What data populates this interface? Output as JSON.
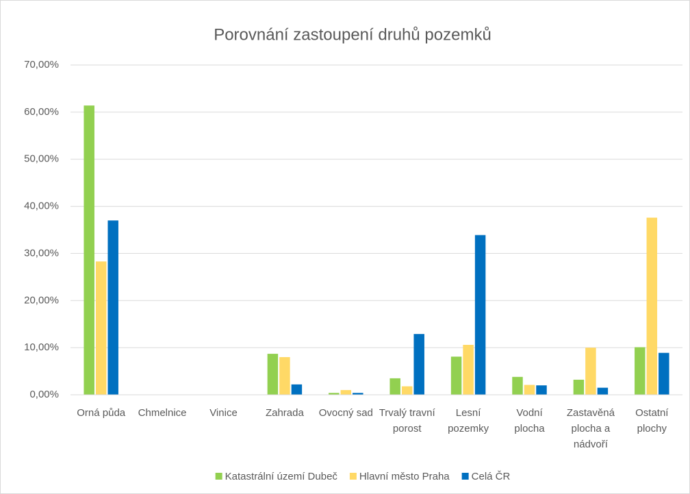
{
  "chart_data": {
    "type": "bar",
    "title": "Porovnání zastoupení druhů pozemků",
    "categories": [
      "Orná půda",
      "Chmelnice",
      "Vinice",
      "Zahrada",
      "Ovocný sad",
      "Trvalý travní porost",
      "Lesní pozemky",
      "Vodní plocha",
      "Zastavěná plocha a nádvoří",
      "Ostatní plochy"
    ],
    "series": [
      {
        "name": "Katastrální území Dubeč",
        "color": "#92d050",
        "values": [
          61.4,
          0,
          0,
          8.7,
          0.4,
          3.5,
          8.1,
          3.8,
          3.2,
          10.1
        ]
      },
      {
        "name": "Hlavní město Praha",
        "color": "#ffd966",
        "values": [
          28.3,
          0,
          0,
          8.0,
          1.0,
          1.8,
          10.6,
          2.1,
          10.0,
          37.6
        ]
      },
      {
        "name": "Celá ČR",
        "color": "#0070c0",
        "values": [
          37.0,
          0,
          0,
          2.2,
          0.4,
          12.9,
          33.9,
          2.0,
          1.5,
          8.9
        ]
      }
    ],
    "ylim": [
      0,
      70
    ],
    "yticks": [
      {
        "value": 0,
        "label": "0,00%"
      },
      {
        "value": 10,
        "label": "10,00%"
      },
      {
        "value": 20,
        "label": "20,00%"
      },
      {
        "value": 30,
        "label": "30,00%"
      },
      {
        "value": 40,
        "label": "40,00%"
      },
      {
        "value": 50,
        "label": "50,00%"
      },
      {
        "value": 60,
        "label": "60,00%"
      },
      {
        "value": 70,
        "label": "70,00%"
      }
    ],
    "grid": true,
    "legend": "bottom"
  }
}
